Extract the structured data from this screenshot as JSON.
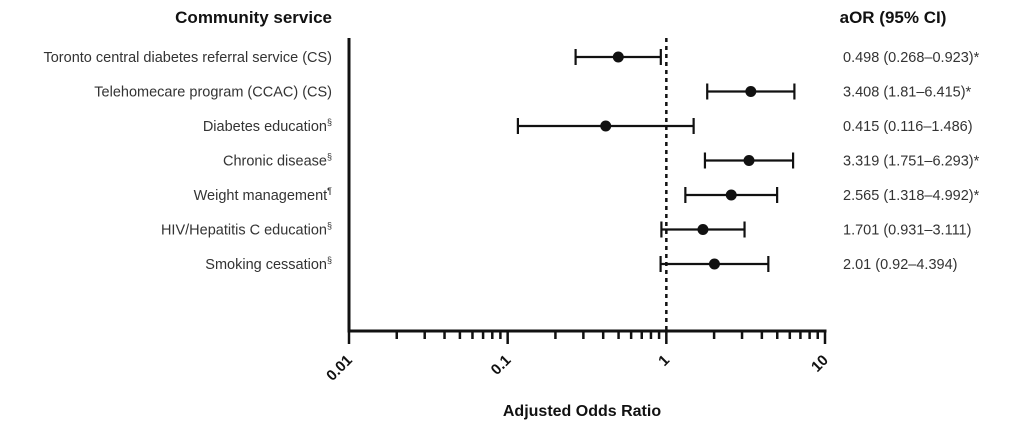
{
  "chart_data": {
    "type": "forest",
    "left_header": "Community service",
    "right_header": "aOR (95% CI)",
    "xlabel": "Adjusted Odds Ratio",
    "x_scale": "log",
    "xlim": [
      0.01,
      10
    ],
    "reference_line": 1,
    "x_ticks": [
      "0.01",
      "0.1",
      "1",
      "10"
    ],
    "rows": [
      {
        "label": "Toronto central diabetes referral service (CS)",
        "sup": "",
        "or": 0.498,
        "lo": 0.268,
        "hi": 0.923,
        "annotation": "0.498 (0.268–0.923)*"
      },
      {
        "label": "Telehomecare program (CCAC) (CS)",
        "sup": "",
        "or": 3.408,
        "lo": 1.81,
        "hi": 6.415,
        "annotation": "3.408 (1.81–6.415)*"
      },
      {
        "label": "Diabetes education",
        "sup": "§",
        "or": 0.415,
        "lo": 0.116,
        "hi": 1.486,
        "annotation": "0.415 (0.116–1.486)"
      },
      {
        "label": "Chronic disease",
        "sup": "§",
        "or": 3.319,
        "lo": 1.751,
        "hi": 6.293,
        "annotation": "3.319 (1.751–6.293)*"
      },
      {
        "label": "Weight management",
        "sup": "¶",
        "or": 2.565,
        "lo": 1.318,
        "hi": 4.992,
        "annotation": "2.565 (1.318–4.992)*"
      },
      {
        "label": "HIV/Hepatitis C education",
        "sup": "§",
        "or": 1.701,
        "lo": 0.931,
        "hi": 3.111,
        "annotation": "1.701 (0.931–3.111)"
      },
      {
        "label": "Smoking cessation",
        "sup": "§",
        "or": 2.01,
        "lo": 0.92,
        "hi": 4.394,
        "annotation": "2.01 (0.92–4.394)"
      }
    ]
  }
}
